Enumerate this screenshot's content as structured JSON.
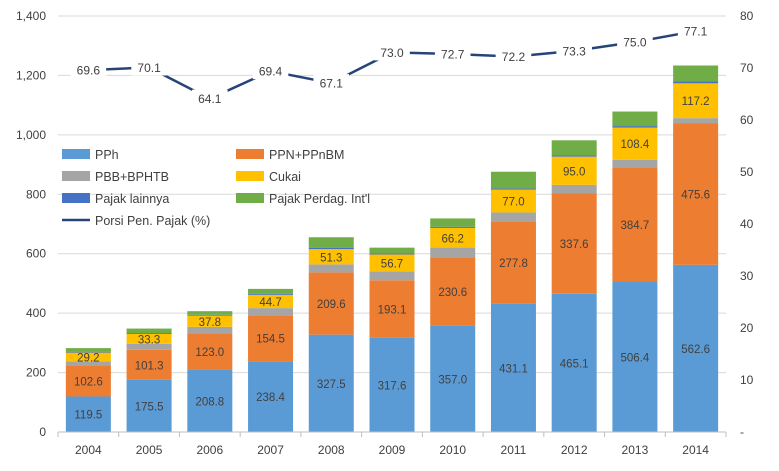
{
  "chart_data": {
    "type": "bar",
    "stacked": true,
    "categories": [
      "2004",
      "2005",
      "2006",
      "2007",
      "2008",
      "2009",
      "2010",
      "2011",
      "2012",
      "2013",
      "2014"
    ],
    "ylim": [
      0,
      1400
    ],
    "yticks": [
      0,
      200,
      400,
      600,
      800,
      1000,
      1200,
      1400
    ],
    "ytick_labels": [
      "0",
      "200",
      "400",
      "600",
      "800",
      "1,000",
      "1,200",
      "1,400"
    ],
    "y2lim": [
      0,
      80
    ],
    "y2ticks": [
      0,
      10,
      20,
      30,
      40,
      50,
      60,
      70,
      80
    ],
    "y2tick_labels": [
      "-",
      "10",
      "20",
      "30",
      "40",
      "50",
      "60",
      "70",
      "80"
    ],
    "grid": true,
    "legend_position": "upper-left",
    "colors": {
      "PPh": "#5b9bd5",
      "PPN+PPnBM": "#ed7d31",
      "PBB+BPHTB": "#a5a5a5",
      "Cukai": "#ffc000",
      "Pajak lainnya": "#4472c4",
      "Pajak Perdag. Int'l": "#70ad47",
      "Porsi Pen. Pajak (%)": "#264478"
    },
    "series": [
      {
        "name": "PPh",
        "values": [
          119.5,
          175.5,
          208.8,
          238.4,
          327.5,
          317.6,
          357.0,
          431.1,
          465.1,
          506.4,
          562.6
        ],
        "labels": [
          "119.5",
          "175.5",
          "208.8",
          "238.4",
          "327.5",
          "317.6",
          "357.0",
          "431.1",
          "465.1",
          "506.4",
          "562.6"
        ]
      },
      {
        "name": "PPN+PPnBM",
        "values": [
          102.6,
          101.3,
          123.0,
          154.5,
          209.6,
          193.1,
          230.6,
          277.8,
          337.6,
          384.7,
          475.6
        ],
        "labels": [
          "102.6",
          "101.3",
          "123.0",
          "154.5",
          "209.6",
          "193.1",
          "230.6",
          "277.8",
          "337.6",
          "384.7",
          "475.6"
        ]
      },
      {
        "name": "PBB+BPHTB",
        "values": [
          16,
          20,
          22,
          24,
          27,
          30,
          33,
          30,
          29,
          25,
          18
        ],
        "labels": []
      },
      {
        "name": "Cukai",
        "values": [
          29.2,
          33.3,
          37.8,
          44.7,
          51.3,
          56.7,
          66.2,
          77.0,
          95.0,
          108.4,
          117.2
        ],
        "labels": [
          "29.2",
          "33.3",
          "37.8",
          "44.7",
          "51.3",
          "56.7",
          "66.2",
          "77.0",
          "95.0",
          "108.4",
          "117.2"
        ]
      },
      {
        "name": "Pajak lainnya",
        "values": [
          3,
          3,
          3,
          3,
          4,
          4,
          4,
          4,
          5,
          5,
          6
        ],
        "labels": []
      },
      {
        "name": "Pajak Perdag. Int'l",
        "values": [
          12,
          15,
          12,
          17,
          36,
          19,
          28,
          56,
          50,
          49,
          54
        ],
        "labels": []
      }
    ],
    "line": {
      "name": "Porsi Pen. Pajak (%)",
      "values": [
        69.6,
        70.1,
        64.1,
        69.4,
        67.1,
        73.0,
        72.7,
        72.2,
        73.3,
        75.0,
        77.1
      ],
      "labels": [
        "69.6",
        "70.1",
        "64.1",
        "69.4",
        "67.1",
        "73.0",
        "72.7",
        "72.2",
        "73.3",
        "75.0",
        "77.1"
      ]
    }
  }
}
